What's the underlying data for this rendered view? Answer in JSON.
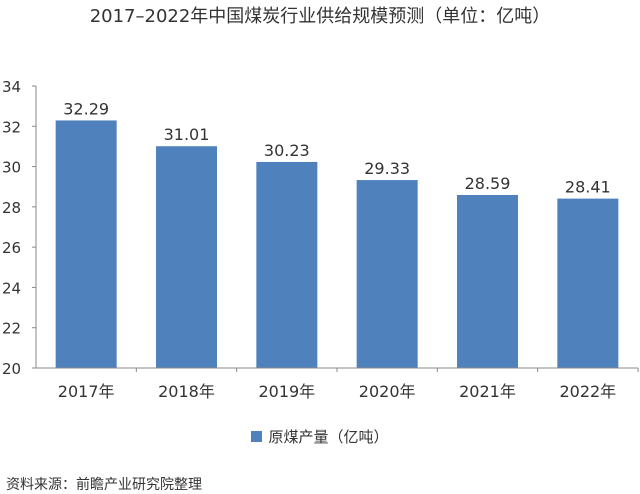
{
  "chart_data": {
    "type": "bar",
    "title": "2017–2022年中国煤炭行业供给规模预测（单位：亿吨）",
    "categories": [
      "2017年",
      "2018年",
      "2019年",
      "2020年",
      "2021年",
      "2022年"
    ],
    "series": [
      {
        "name": "原煤产量（亿吨）",
        "values": [
          32.29,
          31.01,
          30.23,
          29.33,
          28.59,
          28.41
        ],
        "data_labels": [
          "32.29",
          "31.01",
          "30.23",
          "29.33",
          "28.59",
          "28.41"
        ],
        "color": "#4F81BD"
      }
    ],
    "ylim": [
      20,
      34
    ],
    "yticks": [
      "20",
      "22",
      "24",
      "26",
      "28",
      "30",
      "32",
      "34"
    ],
    "grid": false,
    "legend_position": "bottom"
  },
  "source": "资料来源：前瞻产业研究院整理"
}
